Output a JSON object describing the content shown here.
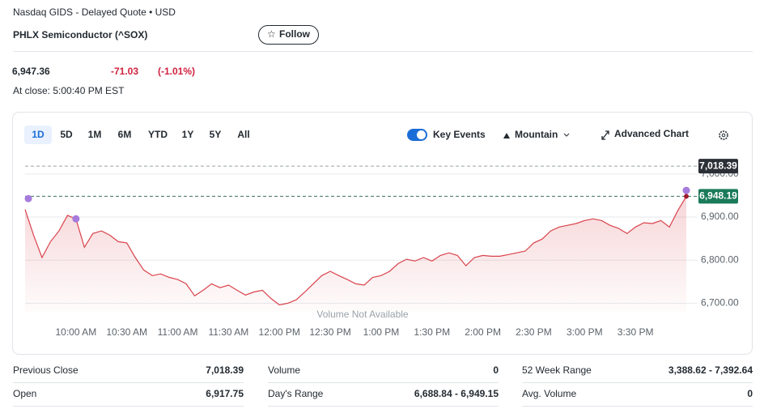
{
  "header": {
    "source": "Nasdaq GIDS - Delayed Quote • USD",
    "title": "PHLX Semiconductor (^SOX)",
    "follow": "Follow"
  },
  "quote": {
    "price": "6,947.36",
    "change": "-71.03",
    "change_percent": "(-1.01%)",
    "status": "At close: 5:00:40 PM EST"
  },
  "toolbar": {
    "ranges": [
      "1D",
      "5D",
      "1M",
      "6M",
      "YTD",
      "1Y",
      "5Y",
      "All"
    ],
    "key_events": "Key Events",
    "chart_style": "Mountain",
    "advanced": "Advanced Chart"
  },
  "chart_data": {
    "type": "line",
    "color": "#d9434c",
    "x": [
      "9:30 AM",
      "9:35 AM",
      "9:40 AM",
      "9:45 AM",
      "9:50 AM",
      "9:55 AM",
      "10:00 AM",
      "10:05 AM",
      "10:10 AM",
      "10:15 AM",
      "10:20 AM",
      "10:25 AM",
      "10:30 AM",
      "10:35 AM",
      "10:40 AM",
      "10:45 AM",
      "10:50 AM",
      "10:55 AM",
      "11:00 AM",
      "11:05 AM",
      "11:10 AM",
      "11:15 AM",
      "11:20 AM",
      "11:25 AM",
      "11:30 AM",
      "11:35 AM",
      "11:40 AM",
      "11:45 AM",
      "11:50 AM",
      "11:55 AM",
      "12:00 PM",
      "12:05 PM",
      "12:10 PM",
      "12:15 PM",
      "12:20 PM",
      "12:25 PM",
      "12:30 PM",
      "12:35 PM",
      "12:40 PM",
      "12:45 PM",
      "12:50 PM",
      "12:55 PM",
      "1:00 PM",
      "1:05 PM",
      "1:10 PM",
      "1:15 PM",
      "1:20 PM",
      "1:25 PM",
      "1:30 PM",
      "1:35 PM",
      "1:40 PM",
      "1:45 PM",
      "1:50 PM",
      "1:55 PM",
      "2:00 PM",
      "2:05 PM",
      "2:10 PM",
      "2:15 PM",
      "2:20 PM",
      "2:25 PM",
      "2:30 PM",
      "2:35 PM",
      "2:40 PM",
      "2:45 PM",
      "2:50 PM",
      "2:55 PM",
      "3:00 PM",
      "3:05 PM",
      "3:10 PM",
      "3:15 PM",
      "3:20 PM",
      "3:25 PM",
      "3:30 PM",
      "3:35 PM",
      "3:40 PM",
      "3:45 PM",
      "3:50 PM",
      "3:55 PM",
      "4:00 PM"
    ],
    "values": [
      6917.75,
      6858,
      6806,
      6843,
      6868,
      6904,
      6896,
      6830,
      6862,
      6868,
      6858,
      6843,
      6840,
      6806,
      6777,
      6764,
      6768,
      6760,
      6755,
      6745,
      6717,
      6730,
      6745,
      6736,
      6742,
      6730,
      6719,
      6726,
      6730,
      6711,
      6696,
      6700,
      6708,
      6726,
      6745,
      6764,
      6774,
      6764,
      6755,
      6745,
      6742,
      6760,
      6764,
      6774,
      6792,
      6802,
      6798,
      6806,
      6798,
      6811,
      6817,
      6811,
      6787,
      6806,
      6811,
      6809,
      6809,
      6813,
      6817,
      6821,
      6840,
      6849,
      6868,
      6877,
      6881,
      6885,
      6892,
      6896,
      6892,
      6881,
      6874,
      6862,
      6877,
      6887,
      6885,
      6892,
      6877,
      6915,
      6948.19
    ],
    "xlim": [
      "9:30 AM",
      "4:00 PM"
    ],
    "xticks": [
      "10:00 AM",
      "10:30 AM",
      "11:00 AM",
      "11:30 AM",
      "12:00 PM",
      "12:30 PM",
      "1:00 PM",
      "1:30 PM",
      "2:00 PM",
      "2:30 PM",
      "3:00 PM",
      "3:30 PM"
    ],
    "ylim": [
      6680,
      7060
    ],
    "yticks": [
      {
        "value": 6700,
        "label": "6,700.00"
      },
      {
        "value": 6800,
        "label": "6,800.00"
      },
      {
        "value": 6900,
        "label": "6,900.00"
      },
      {
        "value": 7000,
        "label": "7,000.00"
      }
    ],
    "grid": true,
    "reference_lines": [
      {
        "value": 7018.39,
        "label": "7,018.39",
        "color": "#2b2f36"
      },
      {
        "value": 6948.19,
        "label": "6,948.19",
        "color": "#1a7a5a"
      }
    ],
    "events": [
      {
        "x": "9:30 AM",
        "value": 6943
      },
      {
        "x": "10:00 AM",
        "value": 6896
      },
      {
        "x": "4:00 PM",
        "value": 6962
      }
    ],
    "annotation": "Volume Not Available"
  },
  "stats": [
    [
      {
        "label": "Previous Close",
        "value": "7,018.39"
      },
      {
        "label": "Volume",
        "value": "0"
      },
      {
        "label": "52 Week Range",
        "value": "3,388.62 - 7,392.64"
      }
    ],
    [
      {
        "label": "Open",
        "value": "6,917.75"
      },
      {
        "label": "Day's Range",
        "value": "6,688.84 - 6,949.15"
      },
      {
        "label": "Avg. Volume",
        "value": "0"
      }
    ]
  ]
}
